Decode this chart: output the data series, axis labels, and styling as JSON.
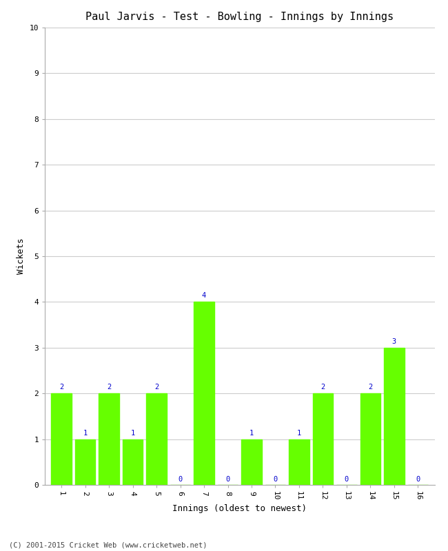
{
  "title": "Paul Jarvis - Test - Bowling - Innings by Innings",
  "xlabel": "Innings (oldest to newest)",
  "ylabel": "Wickets",
  "innings": [
    1,
    2,
    3,
    4,
    5,
    6,
    7,
    8,
    9,
    10,
    11,
    12,
    13,
    14,
    15,
    16
  ],
  "wickets": [
    2,
    1,
    2,
    1,
    2,
    0,
    4,
    0,
    1,
    0,
    1,
    2,
    0,
    2,
    3,
    0
  ],
  "bar_color": "#66ff00",
  "label_color": "#0000cc",
  "ylim": [
    0,
    10
  ],
  "yticks": [
    0,
    1,
    2,
    3,
    4,
    5,
    6,
    7,
    8,
    9,
    10
  ],
  "background_color": "#ffffff",
  "grid_color": "#cccccc",
  "footer": "(C) 2001-2015 Cricket Web (www.cricketweb.net)",
  "title_fontsize": 11,
  "axis_label_fontsize": 9,
  "tick_fontsize": 8,
  "bar_label_fontsize": 7.5,
  "footer_fontsize": 7.5
}
